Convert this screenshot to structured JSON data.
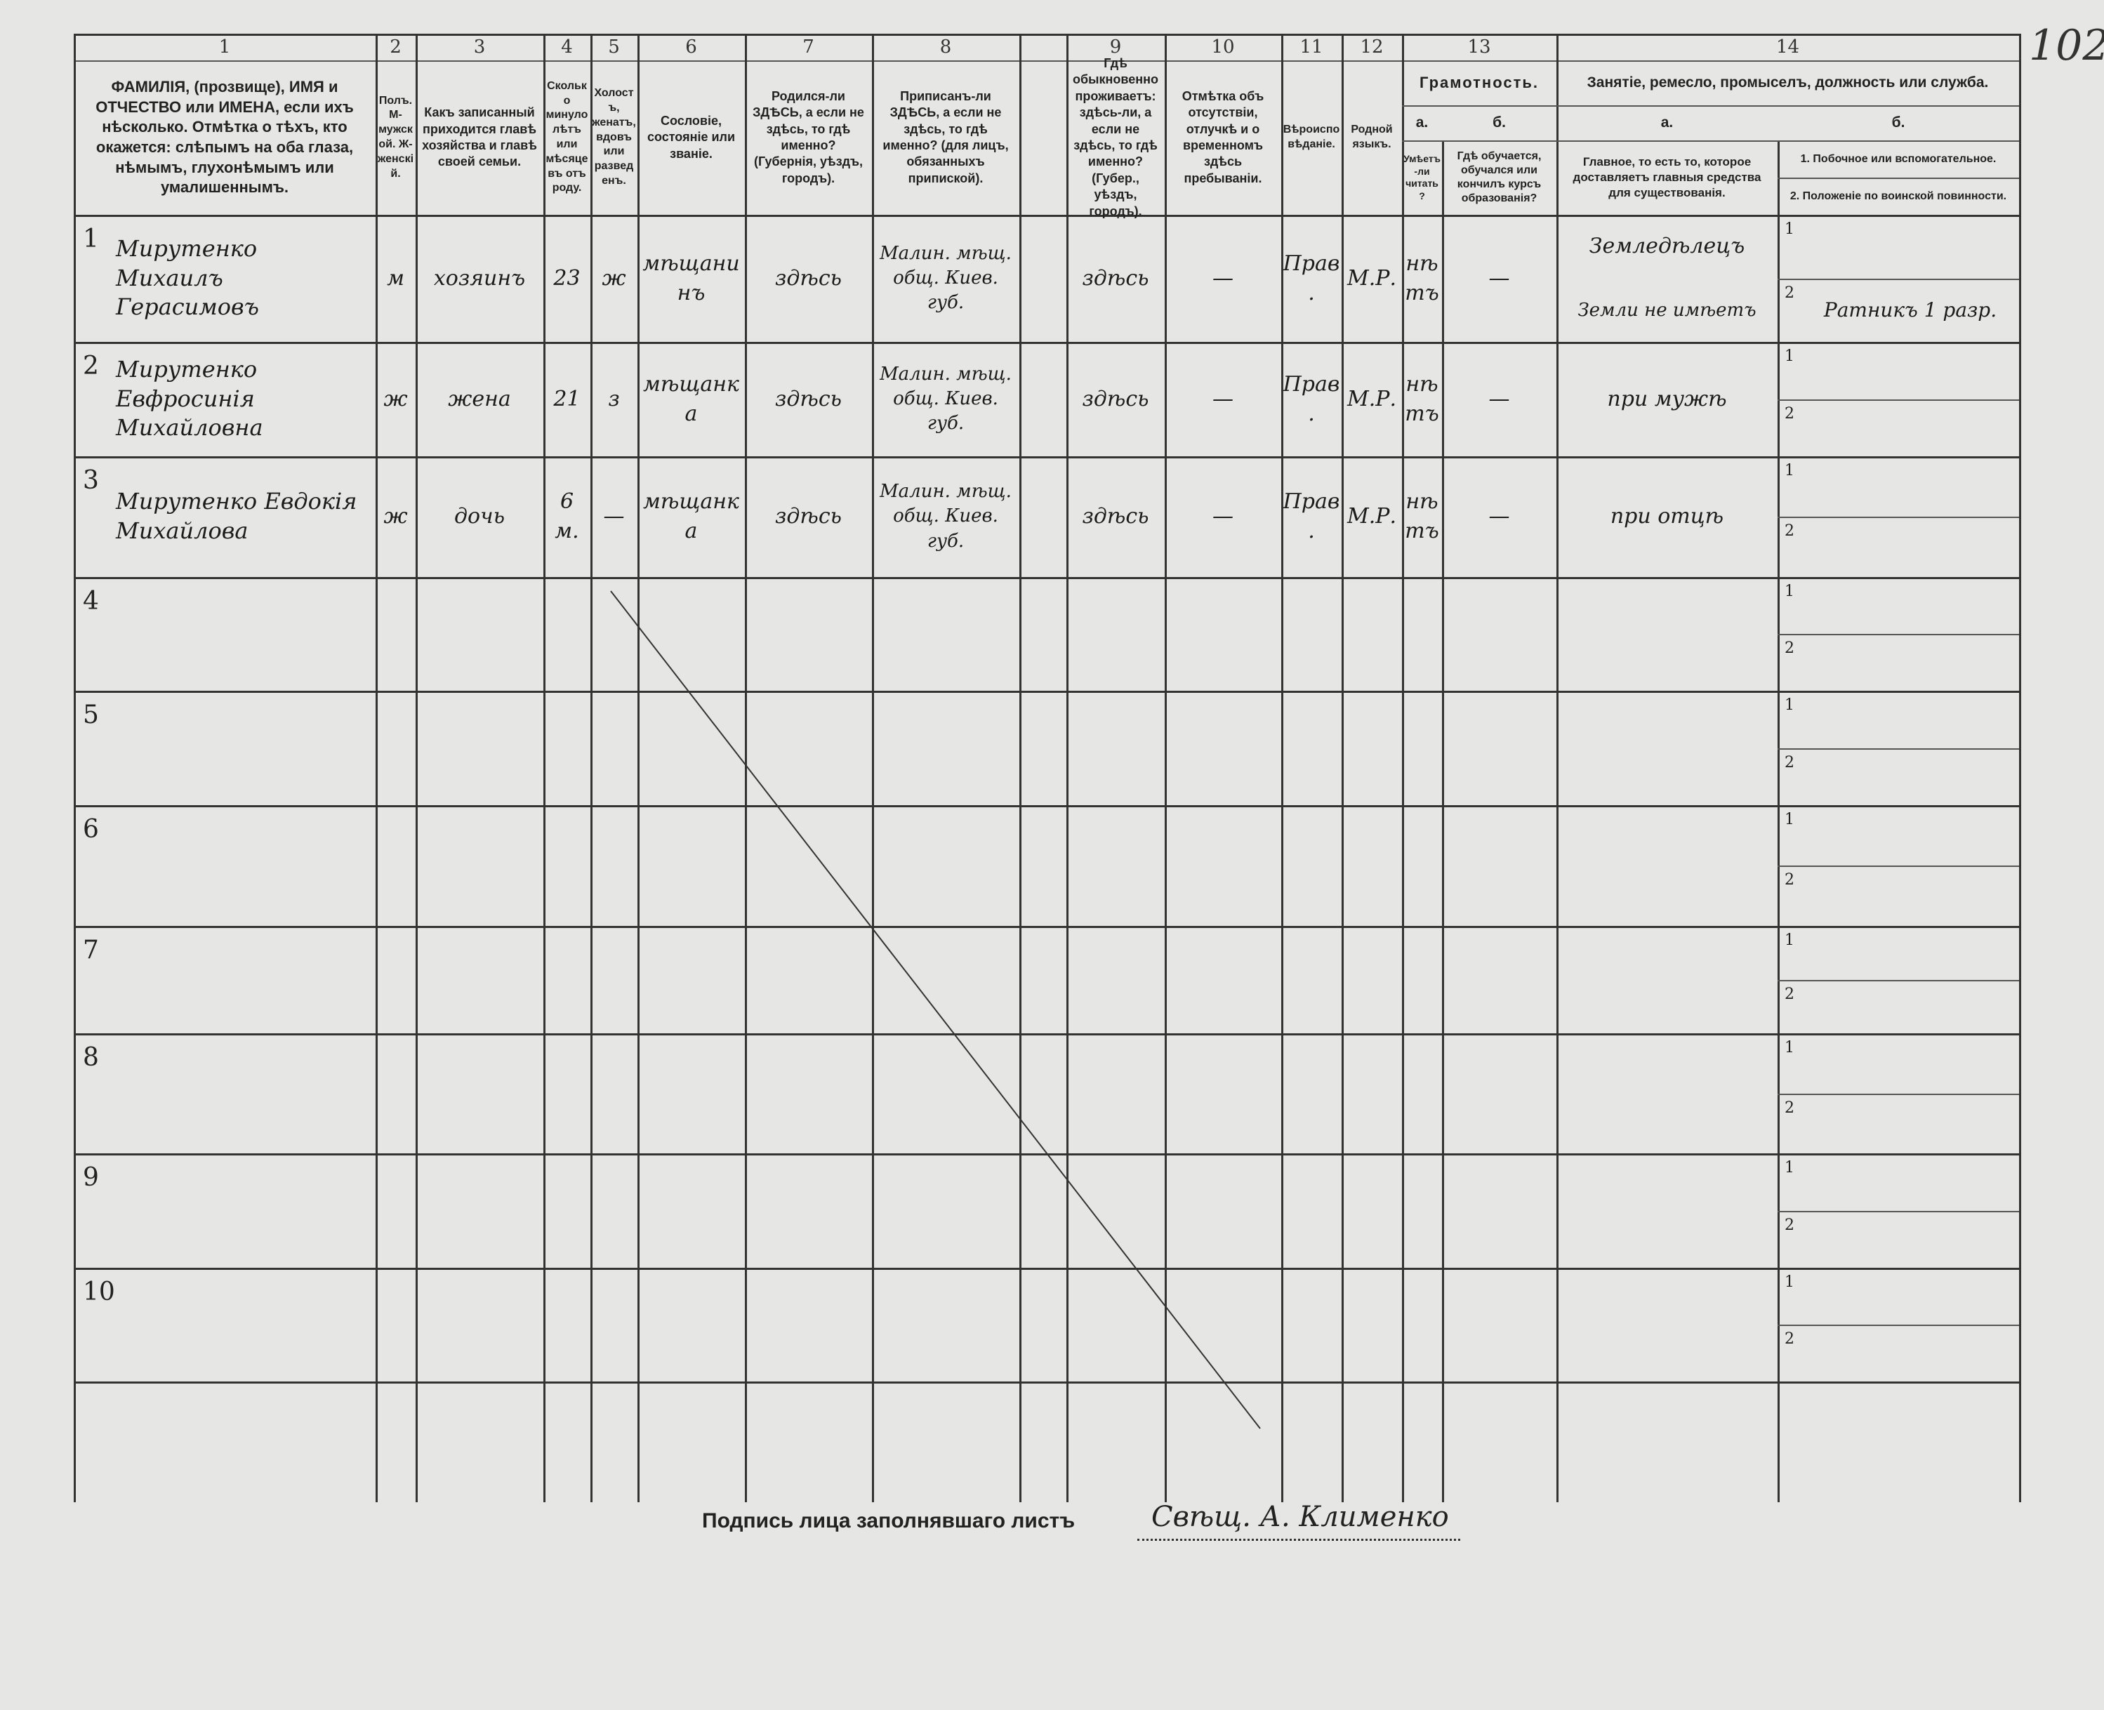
{
  "page_number": "102",
  "header": {
    "columns": [
      {
        "num": "1",
        "text": "ФАМИЛІЯ, (прозвище), ИМЯ и ОТЧЕСТВО или ИМЕНА, если ихъ нѣсколько. Отмѣтка о тѣхъ, кто окажется: слѣпымъ на оба глаза, нѣмымъ, глухонѣмымъ или умалишеннымъ."
      },
      {
        "num": "2",
        "text": "Полъ. М-мужской. Ж-женскій."
      },
      {
        "num": "3",
        "text": "Какъ записанный приходится главѣ хозяйства и главѣ своей семьи."
      },
      {
        "num": "4",
        "text": "Сколько минуло лѣтъ или мѣсяцевъ отъ роду."
      },
      {
        "num": "5",
        "text": "Холостъ, женатъ, вдовъ или разведенъ."
      },
      {
        "num": "6",
        "text": "Сословіе, состояніе или званіе."
      },
      {
        "num": "7",
        "text": "Родился-ли ЗДѢСЬ, а если не здѣсь, то гдѣ именно? (Губернія, уѣздъ, городъ)."
      },
      {
        "num": "8",
        "text": "Приписанъ-ли ЗДѢСЬ, а если не здѣсь, то гдѣ именно? (для лицъ, обязанныхъ припиской)."
      },
      {
        "num": "",
        "text": ""
      },
      {
        "num": "9",
        "text": "Гдѣ обыкновенно проживаетъ: здѣсь-ли, а если не здѣсь, то гдѣ именно? (Губер., уѣздъ, городъ)."
      },
      {
        "num": "10",
        "text": "Отмѣтка объ отсутствіи, отлучкѣ и о временномъ здѣсь пребываніи."
      },
      {
        "num": "11",
        "text": "Вѣроисповѣданіе."
      },
      {
        "num": "12",
        "text": "Родной языкъ."
      }
    ],
    "literacy": {
      "num": "13",
      "title": "Грамотность.",
      "a_letter": "а.",
      "b_letter": "б.",
      "a_text": "Умѣетъ-ли читать?",
      "b_text": "Гдѣ обучается, обучался или кончилъ курсъ образованія?"
    },
    "occupation": {
      "num": "14",
      "title": "Занятіе, ремесло, промыселъ, должность или служба.",
      "a_letter": "а.",
      "b_letter": "б.",
      "a_text": "Главное, то есть то, которое доставляетъ главныя средства для существованія.",
      "b1_text": "1. Побочное или вспомогательное.",
      "b2_text": "2. Положеніе по воинской повинности."
    }
  },
  "row_numbers": [
    "1",
    "2",
    "3",
    "4",
    "5",
    "6",
    "7",
    "8",
    "9",
    "10"
  ],
  "sub_numbers": [
    "1",
    "2"
  ],
  "rows": [
    {
      "name": "Мирутенко Михаилъ Герасимовъ",
      "sex": "м",
      "relation": "хозяинъ",
      "age": "23",
      "marital": "ж",
      "estate": "мѣщанинъ",
      "born": "здѣсь",
      "registered": "Малин. мѣщ. общ. Киев. губ.",
      "residence": "здѣсь",
      "absence": "—",
      "religion": "Прав.",
      "language": "М.Р.",
      "literacy_a": "нѣтъ",
      "literacy_b": "—",
      "occupation_main": "Земледѣлецъ",
      "occupation_side": "Земли не имѣетъ",
      "military": "Ратникъ 1 разр."
    },
    {
      "name": "Мирутенко Евфросинія Михайловна",
      "sex": "ж",
      "relation": "жена",
      "age": "21",
      "marital": "з",
      "estate": "мѣщанка",
      "born": "здѣсь",
      "registered": "Малин. мѣщ. общ. Киев. губ.",
      "residence": "здѣсь",
      "absence": "—",
      "religion": "Прав.",
      "language": "М.Р.",
      "literacy_a": "нѣтъ",
      "literacy_b": "—",
      "occupation_main": "при мужѣ",
      "occupation_side": "",
      "military": ""
    },
    {
      "name": "Мирутенко Евдокія Михайлова",
      "sex": "ж",
      "relation": "дочь",
      "age": "6 м.",
      "marital": "—",
      "estate": "мѣщанка",
      "born": "здѣсь",
      "registered": "Малин. мѣщ. общ. Киев. губ.",
      "residence": "здѣсь",
      "absence": "—",
      "religion": "Прав.",
      "language": "М.Р.",
      "literacy_a": "нѣтъ",
      "literacy_b": "—",
      "occupation_main": "при отцѣ",
      "occupation_side": "",
      "military": ""
    }
  ],
  "signature": {
    "label": "Подпись лица заполнявшаго листъ",
    "value": "Свѣщ. А. Клименко"
  }
}
